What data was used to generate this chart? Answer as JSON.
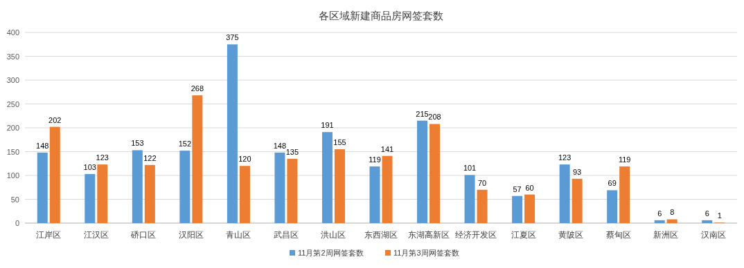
{
  "chart_data": {
    "type": "bar",
    "title": "各区域新建商品房网签套数",
    "categories": [
      "江岸区",
      "江汉区",
      "硚口区",
      "汉阳区",
      "青山区",
      "武昌区",
      "洪山区",
      "东西湖区",
      "东湖高新区",
      "经济开发区",
      "江夏区",
      "黄陂区",
      "蔡甸区",
      "新洲区",
      "汉南区"
    ],
    "series": [
      {
        "name": "11月第2周网签套数",
        "color": "#5b9bd5",
        "values": [
          148,
          103,
          153,
          152,
          375,
          148,
          191,
          119,
          215,
          101,
          57,
          123,
          69,
          6,
          6
        ]
      },
      {
        "name": "11月第3周网签套数",
        "color": "#ed7d31",
        "values": [
          202,
          123,
          122,
          268,
          120,
          135,
          155,
          141,
          208,
          70,
          60,
          93,
          119,
          8,
          1
        ]
      }
    ],
    "ylim": [
      0,
      400
    ],
    "yticks": [
      0,
      50,
      100,
      150,
      200,
      250,
      300,
      350,
      400
    ],
    "grid": "y",
    "data_labels": true,
    "legend": "bottom"
  }
}
